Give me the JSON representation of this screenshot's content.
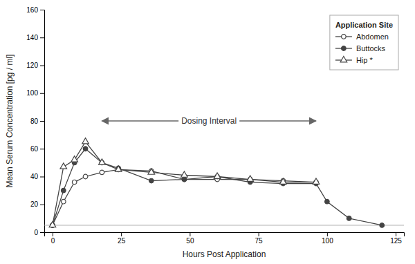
{
  "chart_data": {
    "type": "line",
    "x_label": "Hours Post Application",
    "y_label": "Mean Serum Concentration [pg / ml]",
    "series": [
      {
        "name": "Abdomen",
        "color": "#444444",
        "marker": "open-circle",
        "x": [
          0,
          4,
          8,
          12,
          18,
          24,
          36,
          48,
          60,
          72,
          84,
          96
        ],
        "values": [
          5,
          22,
          36,
          40,
          43,
          45,
          44,
          38,
          38,
          38,
          37,
          36
        ]
      },
      {
        "name": "Buttocks",
        "color": "#444444",
        "marker": "circle",
        "x": [
          0,
          4,
          8,
          12,
          18,
          24,
          36,
          48,
          60,
          72,
          84,
          96,
          100,
          108,
          120
        ],
        "values": [
          5,
          30,
          50,
          60,
          50,
          46,
          37,
          38,
          40,
          36,
          35,
          35,
          22,
          10,
          5
        ]
      },
      {
        "name": "Hip *",
        "color": "#444444",
        "marker": "open-triangle",
        "x": [
          0,
          4,
          8,
          12,
          18,
          24,
          36,
          48,
          60,
          72,
          84,
          96
        ],
        "values": [
          5,
          47,
          52,
          65,
          50,
          45,
          43,
          41,
          40,
          38,
          36,
          36
        ]
      }
    ],
    "xlim": [
      -3,
      128
    ],
    "xticks": [
      0,
      25,
      50,
      75,
      100,
      125
    ],
    "ylim": [
      0,
      160
    ],
    "yticks": [
      0,
      20,
      40,
      60,
      80,
      100,
      120,
      140,
      160
    ],
    "grid": false,
    "legend": "upper-right",
    "legend_title": "Application Site",
    "baseline": 5,
    "annotations": [
      {
        "text": "Dosing Interval",
        "x_start": 18,
        "x_end": 96,
        "y": 80
      }
    ]
  }
}
